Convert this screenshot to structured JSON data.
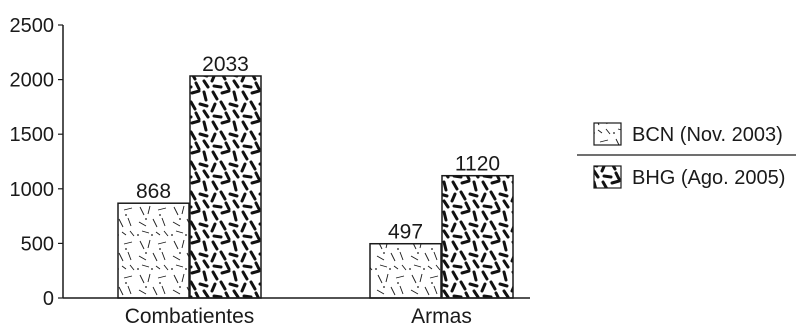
{
  "chart_data": {
    "type": "bar",
    "categories": [
      "Combatientes",
      "Armas"
    ],
    "series": [
      {
        "name": "BCN (Nov. 2003)",
        "values": [
          868,
          497
        ],
        "pattern": "light-hatch"
      },
      {
        "name": "BHG (Ago. 2005)",
        "values": [
          2033,
          1120
        ],
        "pattern": "heavy-dashes"
      }
    ],
    "ylim": [
      0,
      2500
    ],
    "yticks": [
      0,
      500,
      1000,
      1500,
      2000,
      2500
    ],
    "title": "",
    "xlabel": "",
    "ylabel": "",
    "grid": false,
    "legend_position": "right",
    "colors": {
      "ink": "#1a1a1a",
      "background": "#ffffff"
    }
  }
}
